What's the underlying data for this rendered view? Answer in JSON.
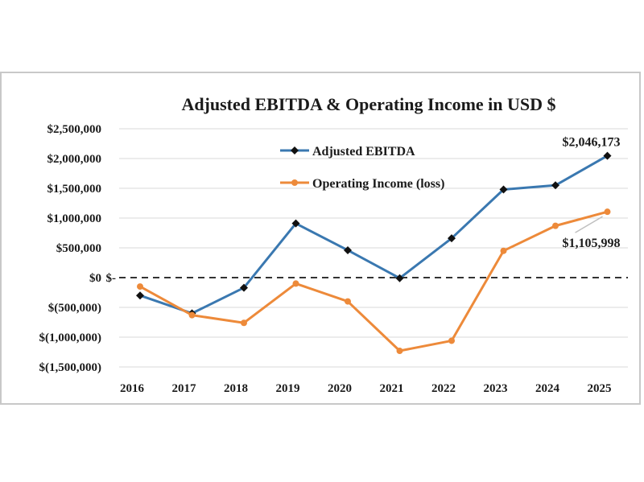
{
  "chart_data": {
    "type": "line",
    "title": "Adjusted EBITDA & Operating Income in USD $",
    "categories": [
      "2016",
      "2017",
      "2018",
      "2019",
      "2020",
      "2021",
      "2022",
      "2023",
      "2024",
      "2025"
    ],
    "series": [
      {
        "name": "Adjusted EBITDA",
        "color": "#3a78b0",
        "marker": "diamond",
        "values": [
          -300000,
          -600000,
          -170000,
          910000,
          460000,
          -10000,
          660000,
          1480000,
          1550000,
          2046173
        ]
      },
      {
        "name": "Operating Income (loss)",
        "color": "#ed8a3a",
        "marker": "circle",
        "values": [
          -150000,
          -630000,
          -760000,
          -100000,
          -400000,
          -1230000,
          -1060000,
          450000,
          870000,
          1105998
        ]
      }
    ],
    "ylim": [
      -1500000,
      2500000
    ],
    "yticks": [
      {
        "value": 2500000,
        "label": "$2,500,000"
      },
      {
        "value": 2000000,
        "label": "$2,000,000"
      },
      {
        "value": 1500000,
        "label": "$1,500,000"
      },
      {
        "value": 1000000,
        "label": "$1,000,000"
      },
      {
        "value": 500000,
        "label": "$500,000"
      },
      {
        "value": 0,
        "label": "$0"
      },
      {
        "value": -500000,
        "label": "$(500,000)"
      },
      {
        "value": -1000000,
        "label": "$(1,000,000)"
      },
      {
        "value": -1500000,
        "label": "$(1,500,000)"
      }
    ],
    "zero_line_label": "$-",
    "annotations": [
      {
        "text": "$2,046,173",
        "series": 0,
        "index": 9
      },
      {
        "text": "$1,105,998",
        "series": 1,
        "index": 9
      }
    ],
    "grid": true,
    "legend": "top-center"
  }
}
